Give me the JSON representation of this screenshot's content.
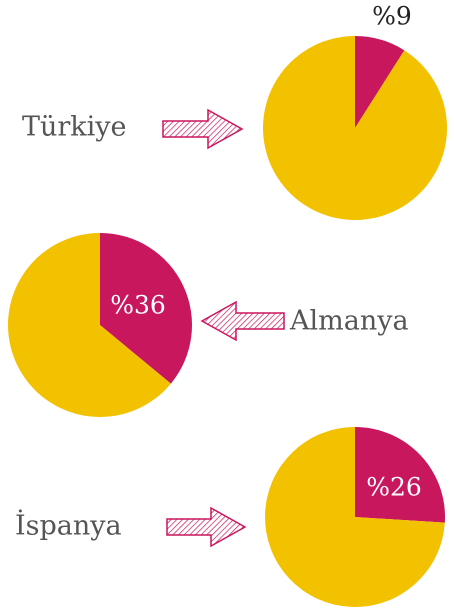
{
  "chart_data": [
    {
      "type": "pie",
      "title": "Türkiye",
      "values": [
        9,
        91
      ],
      "value_labels": [
        "%9",
        null
      ],
      "colors": [
        "#c8175d",
        "#f2c100"
      ]
    },
    {
      "type": "pie",
      "title": "Almanya",
      "values": [
        36,
        64
      ],
      "value_labels": [
        "%36",
        null
      ],
      "colors": [
        "#c8175d",
        "#f2c100"
      ]
    },
    {
      "type": "pie",
      "title": "İspanya",
      "values": [
        26,
        74
      ],
      "value_labels": [
        "%26",
        null
      ],
      "colors": [
        "#c8175d",
        "#f2c100"
      ]
    }
  ]
}
